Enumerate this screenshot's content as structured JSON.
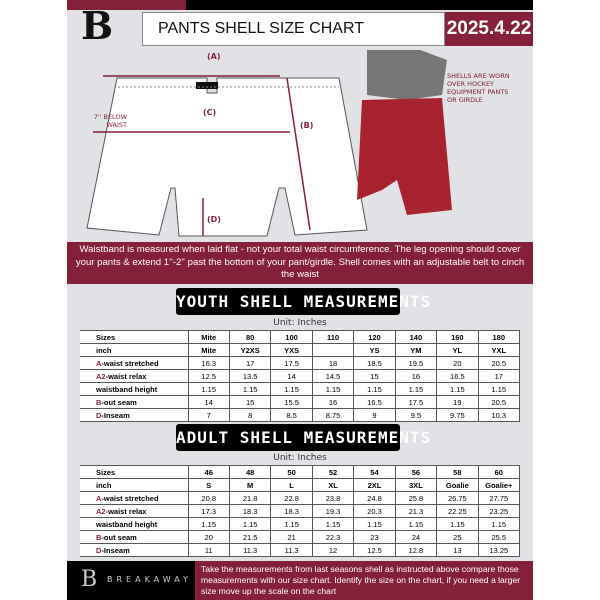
{
  "header": {
    "title": "PANTS SHELL SIZE CHART",
    "date": "2025.4.22",
    "logo": "B"
  },
  "diagram": {
    "label_a": "(A)",
    "label_b": "(B)",
    "label_c": "(C)",
    "label_d": "(D)",
    "below_waist": "7'' BELOW WAIST",
    "note": "SHELLS ARE WORN OVER HOCKEY EQUIPMENT PANTS OR GIRDLE"
  },
  "banner": "Waistband is measured when laid flat - not your total waist circumference. The leg opening should cover your pants & extend 1''-2'' past the bottom of your pant/girdle. Shell comes with an adjustable belt to cinch the waist",
  "youth": {
    "title": "YOUTH SHELL MEASUREMENTS",
    "unit": "Unit: Inches",
    "rows": [
      {
        "prefix": "",
        "label": "Sizes",
        "values": [
          "Mite",
          "80",
          "100",
          "110",
          "120",
          "140",
          "160",
          "180"
        ]
      },
      {
        "prefix": "",
        "label": "inch",
        "values": [
          "Mite",
          "Y2XS",
          "YXS",
          "",
          "YS",
          "YM",
          "YL",
          "YXL"
        ]
      },
      {
        "prefix": "A",
        "label": "-waist stretched",
        "values": [
          "16.3",
          "17",
          "17.5",
          "18",
          "18.5",
          "19.5",
          "20",
          "20.5"
        ]
      },
      {
        "prefix": "A2",
        "label": "-waist relax",
        "values": [
          "12.5",
          "13.5",
          "14",
          "14.5",
          "15",
          "16",
          "16.5",
          "17"
        ]
      },
      {
        "prefix": "",
        "label": "waistband height",
        "values": [
          "1.15",
          "1.15",
          "1.15",
          "1.15",
          "1.15",
          "1.15",
          "1.15",
          "1.15"
        ]
      },
      {
        "prefix": "B",
        "label": "-out seam",
        "values": [
          "14",
          "15",
          "15.5",
          "16",
          "16.5",
          "17.5",
          "19",
          "20.5"
        ]
      },
      {
        "prefix": "D",
        "label": "-Inseam",
        "values": [
          "7",
          "8",
          "8.5",
          "8.75",
          "9",
          "9.5",
          "9.75",
          "10.3"
        ]
      }
    ]
  },
  "adult": {
    "title": "ADULT SHELL MEASUREMENTS",
    "unit": "Unit: Inches",
    "rows": [
      {
        "prefix": "",
        "label": "Sizes",
        "values": [
          "46",
          "48",
          "50",
          "52",
          "54",
          "56",
          "58",
          "60"
        ]
      },
      {
        "prefix": "",
        "label": "inch",
        "values": [
          "S",
          "M",
          "L",
          "XL",
          "2XL",
          "3XL",
          "Goalie",
          "Goalie+"
        ]
      },
      {
        "prefix": "A",
        "label": "-waist stretched",
        "values": [
          "20.8",
          "21.8",
          "22.8",
          "23.8",
          "24.8",
          "25.8",
          "26.75",
          "27.75"
        ]
      },
      {
        "prefix": "A2",
        "label": "-waist relax",
        "values": [
          "17.3",
          "18.3",
          "18.3",
          "19.3",
          "20.3",
          "21.3",
          "22.25",
          "23.25"
        ]
      },
      {
        "prefix": "",
        "label": "waistband height",
        "values": [
          "1.15",
          "1.15",
          "1.15",
          "1.15",
          "1.15",
          "1.15",
          "1.15",
          "1.15"
        ]
      },
      {
        "prefix": "B",
        "label": "-out seam",
        "values": [
          "20",
          "21.5",
          "21",
          "22.3",
          "23",
          "24",
          "25",
          "25.5"
        ]
      },
      {
        "prefix": "D",
        "label": "-Inseam",
        "values": [
          "11",
          "11.3",
          "11.3",
          "12",
          "12.5",
          "12.8",
          "13",
          "13.25"
        ]
      }
    ]
  },
  "footer": {
    "brand": "BREAKAWAY",
    "text": "Take the measurements from last seasons shell as instructed above compare those measurements  with our size chart. Identify the size on the chart, if you need a larger size move up the scale on the chart"
  },
  "colors": {
    "brand": "#85203b",
    "background": "#e1e2e6"
  }
}
